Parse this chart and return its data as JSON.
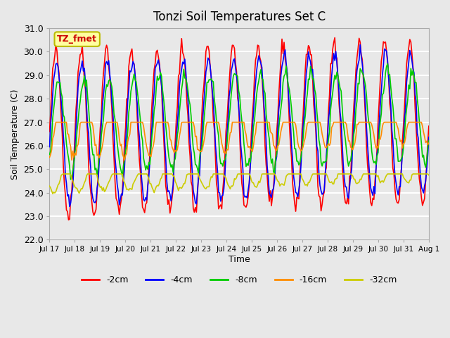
{
  "title": "Tonzi Soil Temperatures Set C",
  "ylabel": "Soil Temperature (C)",
  "xlabel": "Time",
  "ylim": [
    22.0,
    31.0
  ],
  "yticks": [
    22.0,
    23.0,
    24.0,
    25.0,
    26.0,
    27.0,
    28.0,
    29.0,
    30.0,
    31.0
  ],
  "xtick_labels": [
    "Jul 17",
    "Jul 18",
    "Jul 19",
    "Jul 20",
    "Jul 21",
    "Jul 22",
    "Jul 23",
    "Jul 24",
    "Jul 25",
    "Jul 26",
    "Jul 27",
    "Jul 28",
    "Jul 29",
    "Jul 30",
    "Jul 31",
    "Aug 1"
  ],
  "legend_label": "TZ_fmet",
  "line_colors": {
    "-2cm": "#FF0000",
    "-4cm": "#0000FF",
    "-8cm": "#00CC00",
    "-16cm": "#FF8C00",
    "-32cm": "#CCCC00"
  },
  "legend_colors": [
    "#FF0000",
    "#0000FF",
    "#00CC00",
    "#FF8C00",
    "#CCCC00"
  ],
  "legend_names": [
    "-2cm",
    "-4cm",
    "-8cm",
    "-16cm",
    "-32cm"
  ],
  "bg_color": "#E8E8E8",
  "plot_bg_color": "#E8E8E8",
  "grid_color": "#FFFFFF",
  "base_temp": 26.5,
  "amplitudes": [
    3.5,
    3.0,
    2.0,
    1.2,
    0.5
  ],
  "offsets": [
    0.0,
    0.0,
    0.3,
    0.2,
    -2.0
  ]
}
